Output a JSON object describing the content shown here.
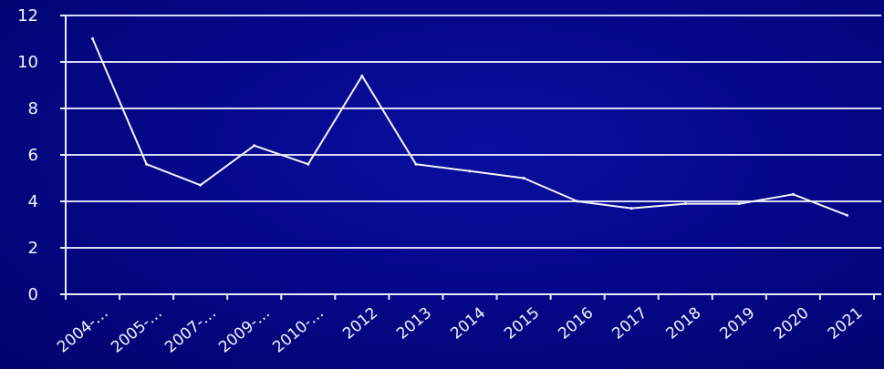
{
  "chart_data": {
    "type": "line",
    "title": "",
    "xlabel": "",
    "ylabel": "",
    "categories": [
      "2004-…",
      "2005-…",
      "2007-…",
      "2009-…",
      "2010-…",
      "2012",
      "2013",
      "2014",
      "2015",
      "2016",
      "2017",
      "2018",
      "2019",
      "2020",
      "2021"
    ],
    "series": [
      {
        "values": [
          11.0,
          5.6,
          4.7,
          6.4,
          5.6,
          9.4,
          5.6,
          5.3,
          5.0,
          4.0,
          3.7,
          3.9,
          3.9,
          4.3,
          3.4
        ]
      }
    ],
    "ylim": [
      0,
      12
    ],
    "yticks": [
      0,
      2,
      4,
      6,
      8,
      10,
      12
    ],
    "grid": true,
    "legend": "none",
    "colors": {
      "background": "#06078a",
      "line": "#f2f4ff",
      "grid": "#e8ecff",
      "text": "#f2f4ff"
    }
  }
}
